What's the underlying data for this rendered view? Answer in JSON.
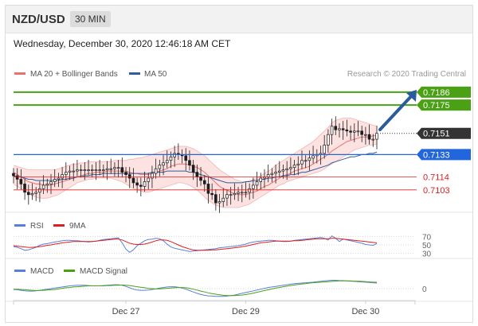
{
  "header": {
    "symbol": "NZD/USD",
    "interval": "30 MIN"
  },
  "datetime": "Wednesday, December 30, 2020 12:46:18 AM CET",
  "colors": {
    "ma20": "#e8726e",
    "bb_fill": "#fbd9d8",
    "ma50": "#2f5d9e",
    "resistance": "#4aa114",
    "support": "#e02020",
    "pivot": "#2266dd",
    "last": "#333333",
    "rsi": "#5b7fd9",
    "rsi9": "#dd1f1f",
    "macd": "#5b7fd9",
    "macd_signal": "#4aa114",
    "arrow": "#2a5b9a"
  },
  "chart_data": [
    {
      "type": "candlestick",
      "title": "NZD/USD",
      "legend": [
        {
          "name": "MA 20 + Bollinger Bands",
          "color": "#e8726e"
        },
        {
          "name": "MA 50",
          "color": "#2f5d9e"
        }
      ],
      "credit": "Research © 2020 Trading Central",
      "x_tick_labels": [
        {
          "label": "Dec 27",
          "index": 30
        },
        {
          "label": "Dec 29",
          "index": 62
        },
        {
          "label": "Dec 30",
          "index": 94
        }
      ],
      "ylim": [
        0.7086,
        0.7192
      ],
      "levels": [
        {
          "label": "0.7186",
          "value": 0.7186,
          "kind": "resistance"
        },
        {
          "label": "0.7175",
          "value": 0.7175,
          "kind": "resistance"
        },
        {
          "label": "0.7151",
          "value": 0.7151,
          "kind": "last"
        },
        {
          "label": "0.7133",
          "value": 0.7133,
          "kind": "pivot"
        },
        {
          "label": "0.7114",
          "value": 0.7114,
          "kind": "support"
        },
        {
          "label": "0.7103",
          "value": 0.7103,
          "kind": "support"
        }
      ],
      "closes": [
        0.7115,
        0.7112,
        0.7108,
        0.7101,
        0.7099,
        0.71,
        0.7101,
        0.7104,
        0.7107,
        0.7108,
        0.711,
        0.7112,
        0.7113,
        0.7116,
        0.7118,
        0.7119,
        0.7119,
        0.712,
        0.712,
        0.712,
        0.712,
        0.712,
        0.712,
        0.712,
        0.712,
        0.7121,
        0.7121,
        0.7122,
        0.7122,
        0.7118,
        0.7116,
        0.7113,
        0.7109,
        0.7107,
        0.7106,
        0.711,
        0.7113,
        0.7117,
        0.7121,
        0.7124,
        0.7126,
        0.7128,
        0.7131,
        0.7134,
        0.7133,
        0.7132,
        0.7128,
        0.7124,
        0.7118,
        0.7114,
        0.7111,
        0.7108,
        0.71,
        0.7099,
        0.7092,
        0.7093,
        0.7096,
        0.7099,
        0.7099,
        0.71,
        0.7101,
        0.7101,
        0.7101,
        0.7104,
        0.7107,
        0.711,
        0.7113,
        0.7114,
        0.7116,
        0.7117,
        0.7118,
        0.7119,
        0.712,
        0.7121,
        0.7122,
        0.7124,
        0.7125,
        0.7128,
        0.7128,
        0.713,
        0.7132,
        0.7133,
        0.7134,
        0.7141,
        0.715,
        0.7157,
        0.7154,
        0.7155,
        0.7154,
        0.7153,
        0.7152,
        0.7153,
        0.7153,
        0.715,
        0.715,
        0.7146,
        0.7146,
        0.7151
      ],
      "bands": {
        "ma20": [
          0.7118,
          0.7116,
          0.7114,
          0.7112,
          0.711,
          0.7109,
          0.7108,
          0.7108,
          0.7107,
          0.7107,
          0.7107,
          0.7108,
          0.7109,
          0.711,
          0.7111,
          0.7112,
          0.7113,
          0.7114,
          0.7115,
          0.7116,
          0.7117,
          0.7117,
          0.7118,
          0.7118,
          0.7118,
          0.7119,
          0.7119,
          0.7119,
          0.7119,
          0.7119,
          0.7119,
          0.7118,
          0.7117,
          0.7117,
          0.7116,
          0.7116,
          0.7116,
          0.7117,
          0.7118,
          0.7119,
          0.712,
          0.7121,
          0.7123,
          0.7124,
          0.7125,
          0.7125,
          0.7125,
          0.7124,
          0.7123,
          0.7122,
          0.712,
          0.7118,
          0.7115,
          0.7112,
          0.7109,
          0.7106,
          0.7104,
          0.7103,
          0.7101,
          0.71,
          0.7099,
          0.7099,
          0.7099,
          0.71,
          0.7101,
          0.7102,
          0.7104,
          0.7106,
          0.7107,
          0.7109,
          0.7111,
          0.7113,
          0.7115,
          0.7116,
          0.7117,
          0.7119,
          0.712,
          0.7121,
          0.7122,
          0.7123,
          0.7125,
          0.7127,
          0.7129,
          0.7131,
          0.7133,
          0.7136,
          0.7138,
          0.714,
          0.7142,
          0.7144,
          0.7145,
          0.7146,
          0.7147,
          0.7148,
          0.7148,
          0.7148,
          0.7149,
          0.7149
        ],
        "upper": [
          0.7124,
          0.7123,
          0.7122,
          0.7121,
          0.712,
          0.712,
          0.712,
          0.712,
          0.712,
          0.712,
          0.712,
          0.712,
          0.7121,
          0.7122,
          0.7123,
          0.7124,
          0.7125,
          0.7125,
          0.7126,
          0.7126,
          0.7127,
          0.7127,
          0.7127,
          0.7127,
          0.7127,
          0.7127,
          0.7127,
          0.7128,
          0.7128,
          0.7128,
          0.7128,
          0.7129,
          0.7129,
          0.713,
          0.713,
          0.7131,
          0.7132,
          0.7133,
          0.7134,
          0.7135,
          0.7136,
          0.7137,
          0.7138,
          0.7139,
          0.714,
          0.714,
          0.714,
          0.7139,
          0.7138,
          0.7136,
          0.7134,
          0.7132,
          0.7129,
          0.7126,
          0.7123,
          0.712,
          0.7118,
          0.7116,
          0.7114,
          0.7112,
          0.7111,
          0.711,
          0.711,
          0.7111,
          0.7112,
          0.7113,
          0.7115,
          0.7117,
          0.7119,
          0.7121,
          0.7124,
          0.7126,
          0.7128,
          0.713,
          0.7132,
          0.7134,
          0.7136,
          0.7138,
          0.714,
          0.7142,
          0.7144,
          0.7147,
          0.715,
          0.7153,
          0.7156,
          0.716,
          0.7162,
          0.7163,
          0.7164,
          0.7164,
          0.7164,
          0.7163,
          0.7162,
          0.7161,
          0.716,
          0.7159,
          0.7158,
          0.7157
        ],
        "lower": [
          0.7108,
          0.7106,
          0.7104,
          0.7102,
          0.71,
          0.7098,
          0.7097,
          0.7096,
          0.7096,
          0.7096,
          0.7097,
          0.7098,
          0.7099,
          0.7101,
          0.7103,
          0.7105,
          0.7107,
          0.7109,
          0.711,
          0.7111,
          0.7112,
          0.7112,
          0.7113,
          0.7113,
          0.7113,
          0.7113,
          0.7113,
          0.7112,
          0.7111,
          0.711,
          0.7108,
          0.7106,
          0.7104,
          0.7103,
          0.7102,
          0.7101,
          0.7101,
          0.7102,
          0.7103,
          0.7104,
          0.7105,
          0.7106,
          0.7107,
          0.7108,
          0.7109,
          0.7109,
          0.7108,
          0.7107,
          0.7105,
          0.7103,
          0.71,
          0.7097,
          0.7094,
          0.7092,
          0.709,
          0.7089,
          0.7088,
          0.7088,
          0.7088,
          0.7088,
          0.7088,
          0.7089,
          0.709,
          0.7091,
          0.7093,
          0.7095,
          0.7097,
          0.7099,
          0.7101,
          0.7103,
          0.7105,
          0.7107,
          0.7108,
          0.711,
          0.7111,
          0.7112,
          0.7113,
          0.7114,
          0.7115,
          0.7116,
          0.7117,
          0.7118,
          0.7119,
          0.7121,
          0.7123,
          0.7125,
          0.7127,
          0.7129,
          0.7131,
          0.7133,
          0.7135,
          0.7137,
          0.7138,
          0.7139,
          0.714,
          0.7141,
          0.7141,
          0.7142
        ],
        "ma50": [
          0.7115,
          0.7114,
          0.7114,
          0.7113,
          0.7112,
          0.7112,
          0.7111,
          0.7111,
          0.7111,
          0.7111,
          0.7111,
          0.7111,
          0.7111,
          0.7112,
          0.7112,
          0.7113,
          0.7113,
          0.7114,
          0.7114,
          0.7115,
          0.7115,
          0.7116,
          0.7116,
          0.7116,
          0.7117,
          0.7117,
          0.7117,
          0.7117,
          0.7117,
          0.7117,
          0.7117,
          0.7117,
          0.7117,
          0.7117,
          0.7117,
          0.7117,
          0.7117,
          0.7118,
          0.7118,
          0.7118,
          0.7118,
          0.7119,
          0.7119,
          0.7119,
          0.7119,
          0.7119,
          0.7119,
          0.7118,
          0.7118,
          0.7117,
          0.7116,
          0.7115,
          0.7114,
          0.7113,
          0.7112,
          0.7111,
          0.711,
          0.7109,
          0.7109,
          0.7109,
          0.7109,
          0.7109,
          0.711,
          0.711,
          0.7111,
          0.7111,
          0.7112,
          0.7112,
          0.7113,
          0.7113,
          0.7114,
          0.7114,
          0.7115,
          0.7115,
          0.7116,
          0.7116,
          0.7117,
          0.7118,
          0.7118,
          0.7119,
          0.712,
          0.7121,
          0.7122,
          0.7123,
          0.7124,
          0.7126,
          0.7127,
          0.7128,
          0.7129,
          0.713,
          0.7131,
          0.7131,
          0.7132,
          0.7133,
          0.7133,
          0.7134,
          0.7134,
          0.7135
        ]
      }
    },
    {
      "type": "line",
      "title": "RSI",
      "legend": [
        {
          "name": "RSI",
          "color": "#5b7fd9"
        },
        {
          "name": "9MA",
          "color": "#dd1f1f"
        }
      ],
      "y_tick_labels": [
        {
          "label": "70",
          "value": 70
        },
        {
          "label": "50",
          "value": 50
        },
        {
          "label": "30",
          "value": 30
        }
      ],
      "ylim": [
        25,
        75
      ],
      "rsi": [
        46,
        44,
        41,
        37,
        38,
        41,
        44,
        49,
        52,
        53,
        55,
        57,
        58,
        60,
        61,
        61,
        60,
        60,
        59,
        58,
        57,
        58,
        59,
        61,
        63,
        64,
        65,
        66,
        67,
        55,
        40,
        32,
        38,
        48,
        54,
        60,
        63,
        64,
        66,
        65,
        60,
        52,
        45,
        42,
        40,
        38,
        36,
        34,
        35,
        36,
        37,
        38,
        39,
        40,
        41,
        43,
        44,
        45,
        46,
        47,
        48,
        50,
        52,
        55,
        57,
        58,
        59,
        60,
        61,
        61,
        60,
        59,
        58,
        58,
        59,
        61,
        62,
        63,
        64,
        65,
        66,
        67,
        68,
        66,
        62,
        72,
        66,
        58,
        64,
        62,
        60,
        58,
        56,
        54,
        51,
        50,
        49,
        53
      ],
      "ma9": [
        48,
        47,
        46,
        45,
        44,
        44,
        45,
        46,
        47,
        49,
        50,
        52,
        53,
        55,
        56,
        57,
        58,
        58,
        58,
        58,
        58,
        58,
        59,
        60,
        61,
        62,
        63,
        64,
        64,
        62,
        58,
        54,
        52,
        51,
        51,
        52,
        54,
        57,
        60,
        62,
        62,
        61,
        58,
        54,
        50,
        46,
        43,
        40,
        38,
        37,
        37,
        37,
        37,
        38,
        38,
        39,
        40,
        41,
        42,
        43,
        44,
        46,
        47,
        49,
        51,
        53,
        55,
        56,
        57,
        58,
        59,
        59,
        59,
        59,
        59,
        60,
        60,
        61,
        62,
        63,
        64,
        65,
        65,
        65,
        65,
        66,
        66,
        65,
        64,
        63,
        62,
        61,
        60,
        59,
        58,
        57,
        56,
        55
      ]
    },
    {
      "type": "line",
      "title": "MACD",
      "legend": [
        {
          "name": "MACD",
          "color": "#5b7fd9"
        },
        {
          "name": "MACD Signal",
          "color": "#4aa114"
        }
      ],
      "y_tick_labels": [
        {
          "label": "0",
          "value": 0
        }
      ],
      "ylim": [
        -4,
        4
      ],
      "macd": [
        -0.3,
        -0.4,
        -0.6,
        -0.8,
        -0.9,
        -0.9,
        -0.8,
        -0.6,
        -0.4,
        -0.2,
        0.0,
        0.2,
        0.4,
        0.6,
        0.8,
        1.0,
        1.1,
        1.2,
        1.2,
        1.2,
        1.1,
        1.0,
        1.0,
        1.0,
        1.1,
        1.2,
        1.3,
        1.4,
        1.4,
        1.2,
        0.8,
        0.3,
        -0.2,
        -0.5,
        -0.6,
        -0.6,
        -0.5,
        -0.3,
        -0.1,
        0.2,
        0.4,
        0.6,
        0.7,
        0.7,
        0.5,
        0.2,
        -0.2,
        -0.7,
        -1.2,
        -1.7,
        -2.1,
        -2.4,
        -2.6,
        -2.7,
        -2.8,
        -2.8,
        -2.8,
        -2.7,
        -2.5,
        -2.3,
        -2.0,
        -1.7,
        -1.4,
        -1.1,
        -0.8,
        -0.5,
        -0.2,
        0.1,
        0.4,
        0.6,
        0.8,
        1.0,
        1.2,
        1.4,
        1.6,
        1.8,
        1.9,
        2.0,
        2.1,
        2.2,
        2.3,
        2.5,
        2.6,
        2.8,
        2.9,
        3.0,
        3.0,
        2.9,
        2.9,
        2.8,
        2.7,
        2.6,
        2.5,
        2.4,
        2.3,
        2.2,
        2.1,
        2.0
      ],
      "signal": [
        -0.2,
        -0.2,
        -0.3,
        -0.4,
        -0.5,
        -0.6,
        -0.7,
        -0.7,
        -0.6,
        -0.5,
        -0.4,
        -0.3,
        -0.1,
        0.1,
        0.3,
        0.4,
        0.6,
        0.7,
        0.8,
        0.9,
        1.0,
        1.0,
        1.0,
        1.0,
        1.0,
        1.1,
        1.1,
        1.2,
        1.2,
        1.3,
        1.2,
        1.1,
        0.9,
        0.7,
        0.5,
        0.3,
        0.1,
        0.0,
        -0.1,
        -0.1,
        0.0,
        0.1,
        0.2,
        0.3,
        0.4,
        0.4,
        0.3,
        0.1,
        -0.2,
        -0.5,
        -0.9,
        -1.2,
        -1.5,
        -1.8,
        -2.0,
        -2.2,
        -2.4,
        -2.5,
        -2.5,
        -2.5,
        -2.4,
        -2.3,
        -2.1,
        -1.9,
        -1.6,
        -1.3,
        -1.0,
        -0.7,
        -0.4,
        -0.1,
        0.2,
        0.4,
        0.7,
        0.9,
        1.1,
        1.3,
        1.5,
        1.7,
        1.8,
        2.0,
        2.1,
        2.2,
        2.3,
        2.4,
        2.5,
        2.6,
        2.7,
        2.8,
        2.8,
        2.8,
        2.8,
        2.7,
        2.7,
        2.6,
        2.5,
        2.4,
        2.3,
        2.3
      ]
    }
  ]
}
